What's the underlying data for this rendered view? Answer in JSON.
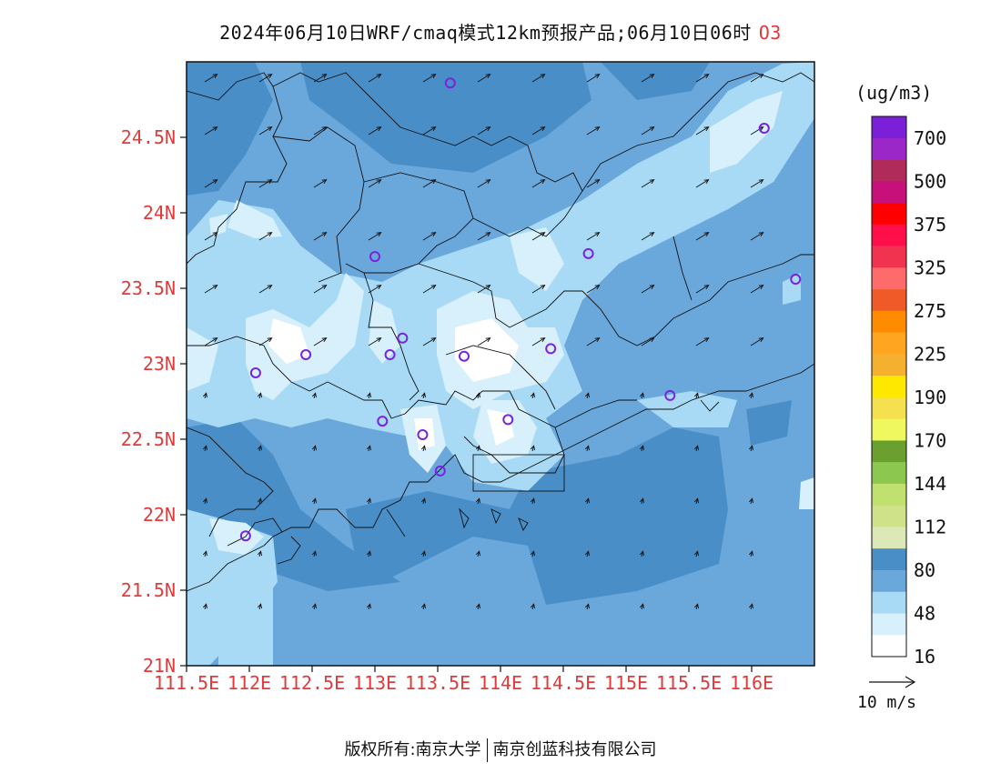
{
  "title": {
    "text": "2024年06月10日WRF/cmaq模式12km预报产品;06月10日06时",
    "pollutant": "O3"
  },
  "map": {
    "lat_labels": [
      "24.5N",
      "24N",
      "23.5N",
      "23N",
      "22.5N",
      "22N",
      "21.5N",
      "21N"
    ],
    "lon_labels": [
      "111.5E",
      "112E",
      "112.5E",
      "113E",
      "113.5E",
      "114E",
      "114.5E",
      "115E",
      "115.5E",
      "116E"
    ],
    "lon_range": [
      111.5,
      116.5
    ],
    "lat_range": [
      21.0,
      25.0
    ],
    "station_markers_color": "#7a22e0",
    "stations": [
      {
        "lon": 113.6,
        "lat": 24.86
      },
      {
        "lon": 116.1,
        "lat": 24.56
      },
      {
        "lon": 113.0,
        "lat": 23.71
      },
      {
        "lon": 114.7,
        "lat": 23.73
      },
      {
        "lon": 116.35,
        "lat": 23.56
      },
      {
        "lon": 112.45,
        "lat": 23.06
      },
      {
        "lon": 112.05,
        "lat": 22.94
      },
      {
        "lon": 113.22,
        "lat": 23.17
      },
      {
        "lon": 113.12,
        "lat": 23.06
      },
      {
        "lon": 113.71,
        "lat": 23.05
      },
      {
        "lon": 114.4,
        "lat": 23.1
      },
      {
        "lon": 115.35,
        "lat": 22.79
      },
      {
        "lon": 113.06,
        "lat": 22.62
      },
      {
        "lon": 113.38,
        "lat": 22.53
      },
      {
        "lon": 114.06,
        "lat": 22.63
      },
      {
        "lon": 113.52,
        "lat": 22.29
      },
      {
        "lon": 111.97,
        "lat": 21.86
      }
    ]
  },
  "colorbar": {
    "unit": "(ug/m3)",
    "labels": [
      "700",
      "500",
      "375",
      "325",
      "275",
      "225",
      "190",
      "170",
      "144",
      "112",
      "80",
      "48",
      "16"
    ],
    "colors": [
      "#7b1fd8",
      "#9c27c8",
      "#b02a5a",
      "#c8107a",
      "#ff0000",
      "#ff0f4a",
      "#f23350",
      "#ff6a6a",
      "#f05a28",
      "#ff8c00",
      "#ffa520",
      "#f5b030",
      "#ffe800",
      "#f5e050",
      "#f0f860",
      "#6aa030",
      "#8cc850",
      "#c0e070",
      "#cfe28a",
      "#dce8b8",
      "#4a8ec8",
      "#6aa8dc",
      "#a8daf5",
      "#d8f0fb",
      "#ffffff"
    ]
  },
  "legend": {
    "wind_label": "10 m/s"
  },
  "footer": {
    "left": "版权所有:南京大学",
    "right": "南京创蓝科技有限公司"
  }
}
